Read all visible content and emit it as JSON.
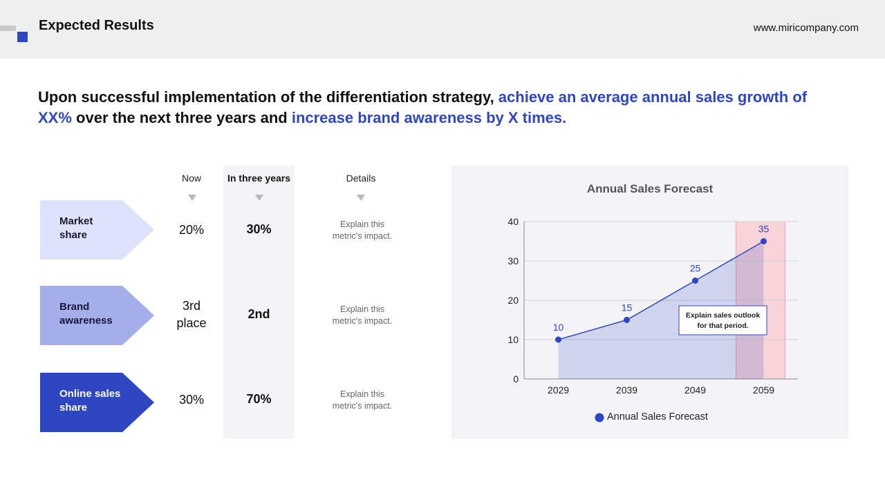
{
  "header": {
    "title": "Expected Results",
    "url": "www.miricompany.com"
  },
  "headline": {
    "part1": "Upon successful implementation of the differentiation strategy, ",
    "highlight1": "achieve an average annual sales growth of XX%",
    "part2": " over the next three years and ",
    "highlight2": "increase brand awareness by X times."
  },
  "table": {
    "columns": [
      "Now",
      "In three years",
      "Details"
    ],
    "rows": [
      {
        "label_line1": "Market",
        "label_line2": "share",
        "now_line1": "20%",
        "now_line2": "",
        "future": "30%",
        "detail_line1": "Explain this",
        "detail_line2": "metric's impact."
      },
      {
        "label_line1": "Brand",
        "label_line2": "awareness",
        "now_line1": "3rd",
        "now_line2": "place",
        "future": "2nd",
        "detail_line1": "Explain this",
        "detail_line2": "metric's impact."
      },
      {
        "label_line1": "Online sales",
        "label_line2": "share",
        "now_line1": "30%",
        "now_line2": "",
        "future": "70%",
        "detail_line1": "Explain this",
        "detail_line2": "metric's impact."
      }
    ]
  },
  "colors": {
    "accent": "#2e46c2",
    "light": "#dfe2fb",
    "mid": "#a4afe9",
    "highlight_band": "#f8d4d8"
  },
  "chart_data": {
    "type": "line",
    "title": "Annual Sales Forecast",
    "categories": [
      "2029",
      "2039",
      "2049",
      "2059"
    ],
    "series": [
      {
        "name": "Annual Sales Forecast",
        "values": [
          10,
          15,
          25,
          35
        ]
      }
    ],
    "ylim": [
      0,
      40
    ],
    "yticks": [
      0,
      10,
      20,
      30,
      40
    ],
    "xlabel": "",
    "ylabel": "",
    "highlight_category": "2059",
    "annotation_line1": "Explain sales outlook",
    "annotation_line2": "for that period.",
    "legend_position": "bottom",
    "grid": true
  }
}
